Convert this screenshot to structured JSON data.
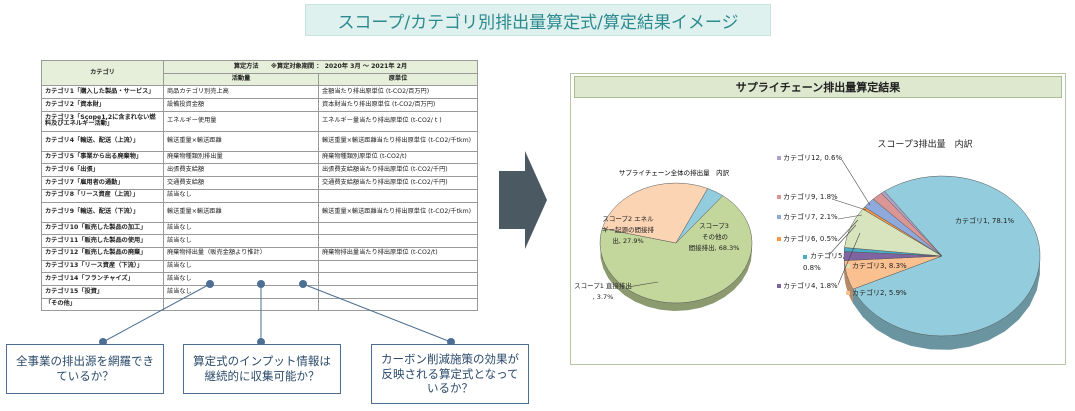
{
  "page_title": "スコープ/カテゴリ別排出量算定式/算定結果イメージ",
  "table": {
    "header_category": "カテゴリ",
    "header_method": "算定方法　　※算定対象期間 ： 2020年 3月 ～ 2021年 2月",
    "header_activity": "活動量",
    "header_unit": "原単位",
    "rows": [
      {
        "cat": "カテゴリ1「購入した製品・サービス」",
        "activity": "商品カテゴリ別売上高",
        "unit": "金額当たり排出原単位 (t-CO2/百万円)"
      },
      {
        "cat": "カテゴリ2「資本財」",
        "activity": "設備投資金額",
        "unit": "資本財当たり排出原単位 (t-CO2/百万円)"
      },
      {
        "cat": "カテゴリ3「Scope1,2に含まれない燃料及びエネルギー活動」",
        "activity": "エネルギー使用量",
        "unit": "エネルギー量当たり排出原単位 (t-CO2/ t )"
      },
      {
        "cat": "カテゴリ4「輸送、配送（上流）」",
        "activity": "輸送重量×輸送距離",
        "unit": "輸送重量×輸送距離当たり排出原単位 (t-CO2/千tkm)"
      },
      {
        "cat": "カテゴリ5「事業から出る廃棄物」",
        "activity": "廃棄物種類別排出量",
        "unit": "廃棄物種類別原単位 (t-CO2/t)"
      },
      {
        "cat": "カテゴリ6「出張」",
        "activity": "出張費支給額",
        "unit": "出張費支給額当たり排出原単位 (t-CO2/千円)"
      },
      {
        "cat": "カテゴリ7「雇用者の通勤」",
        "activity": "交通費支給額",
        "unit": "交通費支給額当たり排出原単位 (t-CO2/千円)"
      },
      {
        "cat": "カテゴリ8「リース資産（上流）」",
        "activity": "該当なし",
        "unit": ""
      },
      {
        "cat": "カテゴリ9「輸送、配送（下流）」",
        "activity": "輸送重量×輸送距離",
        "unit": "輸送重量×輸送距離当たり排出原単位 (t-CO2/千tkm)"
      },
      {
        "cat": "カテゴリ10「販売した製品の加工」",
        "activity": "該当なし",
        "unit": ""
      },
      {
        "cat": "カテゴリ11「販売した製品の使用」",
        "activity": "該当なし",
        "unit": ""
      },
      {
        "cat": "カテゴリ12「販売した製品の廃棄」",
        "activity": "廃棄物排出量（販売金額より推計）",
        "unit": "廃棄物排出量当たり排出原単位 (t-CO2/t)"
      },
      {
        "cat": "カテゴリ13「リース資産（下流）」",
        "activity": "該当なし",
        "unit": ""
      },
      {
        "cat": "カテゴリ14「フランチャイズ」",
        "activity": "該当なし",
        "unit": ""
      },
      {
        "cat": "カテゴリ15「投資」",
        "activity": "該当なし",
        "unit": ""
      },
      {
        "cat": "「その他」",
        "activity": "",
        "unit": ""
      }
    ]
  },
  "callouts": {
    "q1": "全事業の排出源を網羅できているか？",
    "q2": "算定式のインプット情報は継続的に収集可能か？",
    "q3": "カーボン削減施策の効果が反映される算定式となっているか？"
  },
  "result_panel": {
    "title": "サプライチェーン排出量算定結果"
  },
  "chart_data": [
    {
      "type": "pie",
      "title": "サプライチェーン全体の排出量　内訳",
      "labels": [
        "スコープ3 その他の間接排出",
        "スコープ2 エネルギー起源の間接排出",
        "スコープ1 直接排出"
      ],
      "display_labels": [
        "スコープ3 その他の間接排出, 68.3%",
        "スコープ2 エネルギー起源の間接排出, 27.9%",
        "スコープ1 直接排出, 3.7%"
      ],
      "values": [
        68.3,
        27.9,
        3.7
      ],
      "colors": [
        "#c3d69b",
        "#fbd4b4",
        "#93cddd"
      ]
    },
    {
      "type": "pie",
      "title": "スコープ3排出量　内訳",
      "labels": [
        "カテゴリ1",
        "カテゴリ2",
        "カテゴリ4",
        "カテゴリ5",
        "カテゴリ3",
        "カテゴリ6",
        "カテゴリ7",
        "カテゴリ9",
        "カテゴリ12"
      ],
      "display_labels": [
        "カテゴリ1, 78.1%",
        "カテゴリ2, 5.9%",
        "カテゴリ4, 1.8%",
        "カテゴリ5,",
        "カテゴリ3, 8.3%",
        "カテゴリ6, 0.5%",
        "カテゴリ7, 2.1%",
        "カテゴリ9, 1.8%",
        "カテゴリ12, 0.6%"
      ],
      "cat5_value_line": "0.8%",
      "values": [
        78.1,
        5.9,
        1.8,
        0.8,
        8.3,
        0.5,
        2.1,
        1.8,
        0.6
      ],
      "colors": [
        "#93cddd",
        "#fac090",
        "#8064a2",
        "#4bacc6",
        "#d7e4bd",
        "#f79646",
        "#8ea9db",
        "#d99694",
        "#b3a2c7"
      ]
    }
  ]
}
